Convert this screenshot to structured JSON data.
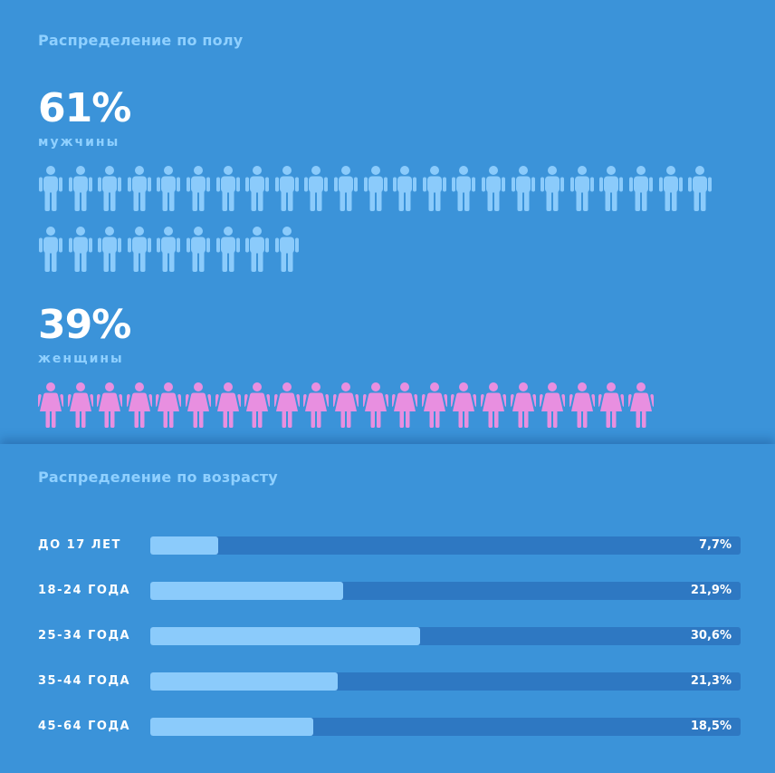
{
  "gender": {
    "title": "Распределение по полу",
    "male": {
      "percent": "61%",
      "label": "мужчины",
      "icon": "male-person-icon",
      "color": "#8bcbfb",
      "icon_count": 32
    },
    "female": {
      "percent": "39%",
      "label": "женщины",
      "icon": "female-person-icon",
      "color": "#e88fe0",
      "icon_count": 21
    }
  },
  "age": {
    "title": "Распределение по возрасту",
    "colors": {
      "fill": "#8bcbfb",
      "track": "#2e78c2"
    }
  },
  "chart_data": [
    {
      "type": "pictogram",
      "categories": [
        "мужчины",
        "женщины"
      ],
      "values": [
        61,
        39
      ],
      "value_labels": [
        "61%",
        "39%"
      ],
      "title": "Распределение по полу"
    },
    {
      "type": "bar",
      "orientation": "horizontal",
      "title": "Распределение по возрасту",
      "categories": [
        "до 17 лет",
        "18-24 года",
        "25-34 года",
        "35-44 года",
        "45-64 года"
      ],
      "values": [
        7.7,
        21.9,
        30.6,
        21.3,
        18.5
      ],
      "value_labels": [
        "7,7%",
        "21,9%",
        "30,6%",
        "21,3%",
        "18,5%"
      ],
      "xlim": [
        0,
        67
      ]
    }
  ]
}
